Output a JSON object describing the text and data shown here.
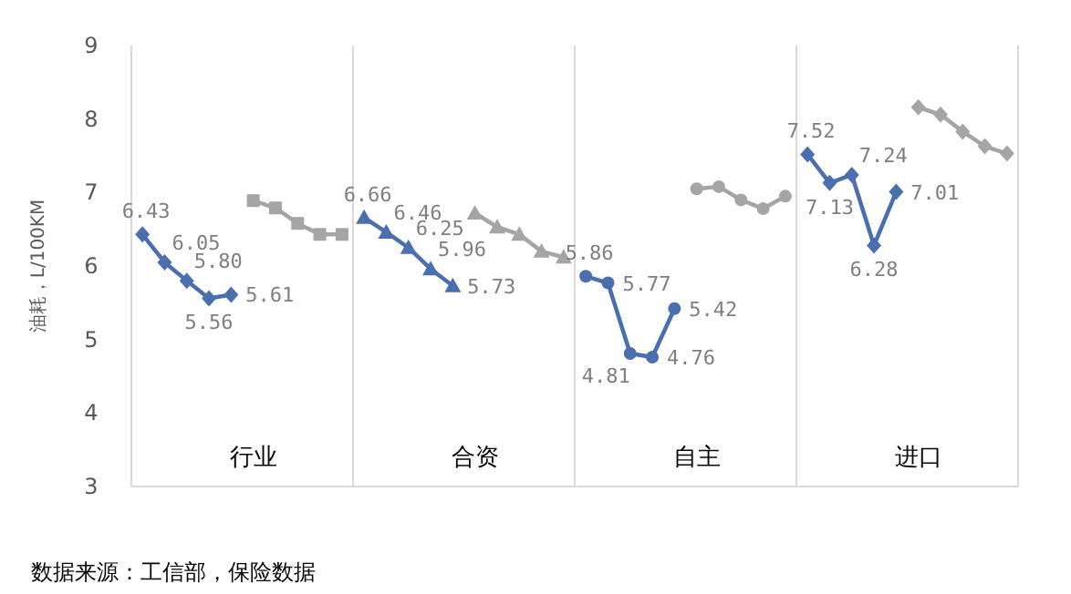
{
  "chart_data": {
    "type": "line",
    "ylabel": "油耗，L/100KM",
    "annotations": [
      "数据来源：工信部，保险数据"
    ],
    "categories": [
      null,
      null,
      null,
      null,
      null,
      "行业",
      null,
      null,
      null,
      null,
      null,
      null,
      null,
      null,
      null,
      "合资",
      null,
      null,
      null,
      null,
      null,
      null,
      null,
      null,
      null,
      "自主",
      null,
      null,
      null,
      null,
      null,
      null,
      null,
      null,
      null,
      "进口",
      null,
      null,
      null,
      null
    ],
    "ylim": [
      3,
      9
    ],
    "yticks": [
      3,
      4,
      5,
      6,
      7,
      8,
      9
    ],
    "series": [
      {
        "color": "#4a6fb0",
        "marker": "diamond",
        "values": [
          6.43,
          6.05,
          5.8,
          5.56,
          5.61,
          null,
          null,
          null,
          null,
          null,
          null,
          null,
          null,
          null,
          null,
          null,
          null,
          null,
          null,
          null,
          null,
          null,
          null,
          null,
          null,
          null,
          null,
          null,
          null,
          null,
          null,
          null,
          null,
          null,
          null,
          null,
          null,
          null,
          null,
          null
        ],
        "value_labels": [
          "6.43",
          "6.05",
          "5.80",
          "5.56",
          "5.61",
          null,
          null,
          null,
          null,
          null,
          null,
          null,
          null,
          null,
          null,
          null,
          null,
          null,
          null,
          null,
          null,
          null,
          null,
          null,
          null,
          null,
          null,
          null,
          null,
          null,
          null,
          null,
          null,
          null,
          null,
          null,
          null,
          null,
          null,
          null
        ]
      },
      {
        "color": "#a5a5a5",
        "marker": "square",
        "values": [
          null,
          null,
          null,
          null,
          null,
          6.89,
          6.79,
          6.58,
          6.43,
          6.43,
          null,
          null,
          null,
          null,
          null,
          null,
          null,
          null,
          null,
          null,
          null,
          null,
          null,
          null,
          null,
          null,
          null,
          null,
          null,
          null,
          null,
          null,
          null,
          null,
          null,
          null,
          null,
          null,
          null,
          null
        ]
      },
      {
        "color": "#4a6fb0",
        "marker": "triangle",
        "values": [
          null,
          null,
          null,
          null,
          null,
          null,
          null,
          null,
          null,
          null,
          6.66,
          6.46,
          6.25,
          5.96,
          5.73,
          null,
          null,
          null,
          null,
          null,
          null,
          null,
          null,
          null,
          null,
          null,
          null,
          null,
          null,
          null,
          null,
          null,
          null,
          null,
          null,
          null,
          null,
          null,
          null,
          null
        ],
        "value_labels": [
          null,
          null,
          null,
          null,
          null,
          null,
          null,
          null,
          null,
          null,
          "6.66",
          "6.46",
          "6.25",
          "5.96",
          "5.73",
          null,
          null,
          null,
          null,
          null,
          null,
          null,
          null,
          null,
          null,
          null,
          null,
          null,
          null,
          null,
          null,
          null,
          null,
          null,
          null,
          null,
          null,
          null,
          null,
          null
        ]
      },
      {
        "color": "#a5a5a5",
        "marker": "triangle",
        "values": [
          null,
          null,
          null,
          null,
          null,
          null,
          null,
          null,
          null,
          null,
          null,
          null,
          null,
          null,
          null,
          6.72,
          6.53,
          6.43,
          6.2,
          6.12,
          null,
          null,
          null,
          null,
          null,
          null,
          null,
          null,
          null,
          null,
          null,
          null,
          null,
          null,
          null,
          null,
          null,
          null,
          null,
          null
        ]
      },
      {
        "color": "#4a6fb0",
        "marker": "circle",
        "values": [
          null,
          null,
          null,
          null,
          null,
          null,
          null,
          null,
          null,
          null,
          null,
          null,
          null,
          null,
          null,
          null,
          null,
          null,
          null,
          null,
          5.86,
          5.77,
          4.81,
          4.76,
          5.42,
          null,
          null,
          null,
          null,
          null,
          null,
          null,
          null,
          null,
          null,
          null,
          null,
          null,
          null,
          null
        ],
        "value_labels": [
          null,
          null,
          null,
          null,
          null,
          null,
          null,
          null,
          null,
          null,
          null,
          null,
          null,
          null,
          null,
          null,
          null,
          null,
          null,
          null,
          "5.86",
          "5.77",
          "4.81",
          "4.76",
          "5.42",
          null,
          null,
          null,
          null,
          null,
          null,
          null,
          null,
          null,
          null,
          null,
          null,
          null,
          null,
          null
        ]
      },
      {
        "color": "#a5a5a5",
        "marker": "circle",
        "values": [
          null,
          null,
          null,
          null,
          null,
          null,
          null,
          null,
          null,
          null,
          null,
          null,
          null,
          null,
          null,
          null,
          null,
          null,
          null,
          null,
          null,
          null,
          null,
          null,
          null,
          7.05,
          7.08,
          6.9,
          6.78,
          6.95,
          null,
          null,
          null,
          null,
          null,
          null,
          null,
          null,
          null,
          null
        ]
      },
      {
        "color": "#4a6fb0",
        "marker": "diamond",
        "values": [
          null,
          null,
          null,
          null,
          null,
          null,
          null,
          null,
          null,
          null,
          null,
          null,
          null,
          null,
          null,
          null,
          null,
          null,
          null,
          null,
          null,
          null,
          null,
          null,
          null,
          null,
          null,
          null,
          null,
          null,
          7.52,
          7.13,
          7.24,
          6.28,
          7.01,
          null,
          null,
          null,
          null,
          null
        ],
        "value_labels": [
          null,
          null,
          null,
          null,
          null,
          null,
          null,
          null,
          null,
          null,
          null,
          null,
          null,
          null,
          null,
          null,
          null,
          null,
          null,
          null,
          null,
          null,
          null,
          null,
          null,
          null,
          null,
          null,
          null,
          null,
          "7.52",
          "7.13",
          "7.24",
          "6.28",
          "7.01",
          null,
          null,
          null,
          null,
          null
        ]
      },
      {
        "color": "#a5a5a5",
        "marker": "diamond",
        "values": [
          null,
          null,
          null,
          null,
          null,
          null,
          null,
          null,
          null,
          null,
          null,
          null,
          null,
          null,
          null,
          null,
          null,
          null,
          null,
          null,
          null,
          null,
          null,
          null,
          null,
          null,
          null,
          null,
          null,
          null,
          null,
          null,
          null,
          null,
          null,
          8.16,
          8.06,
          7.83,
          7.63,
          7.53
        ]
      }
    ]
  }
}
